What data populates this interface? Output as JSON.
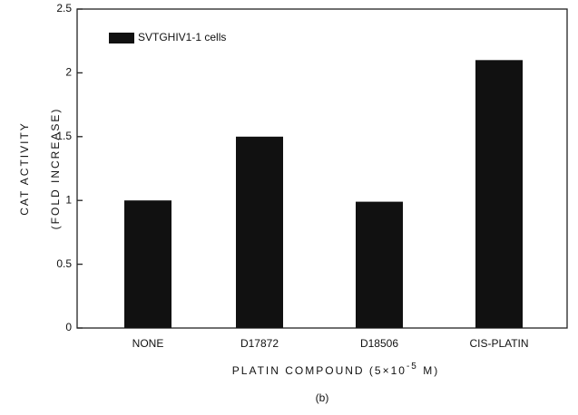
{
  "chart_data": {
    "type": "bar",
    "y_label_line1": "CAT   ACTIVITY",
    "y_label_line2": "(FOLD   INCREASE)",
    "x_label": "PLATIN      COMPOUND  (5×10",
    "x_label_exponent": "-5",
    "x_label_end": " M)",
    "caption": "(b)",
    "categories": [
      "NONE",
      "D17872",
      "D18506",
      "CIS-PLATIN"
    ],
    "series": [
      {
        "name": "SVTGHIV1-1 cells",
        "color": "#111111",
        "values": [
          1.0,
          1.5,
          0.99,
          2.1
        ]
      }
    ],
    "ylim": [
      0,
      2.5
    ],
    "yticks": [
      0,
      0.5,
      1,
      1.5,
      2,
      2.5
    ],
    "legend": "upper left"
  }
}
